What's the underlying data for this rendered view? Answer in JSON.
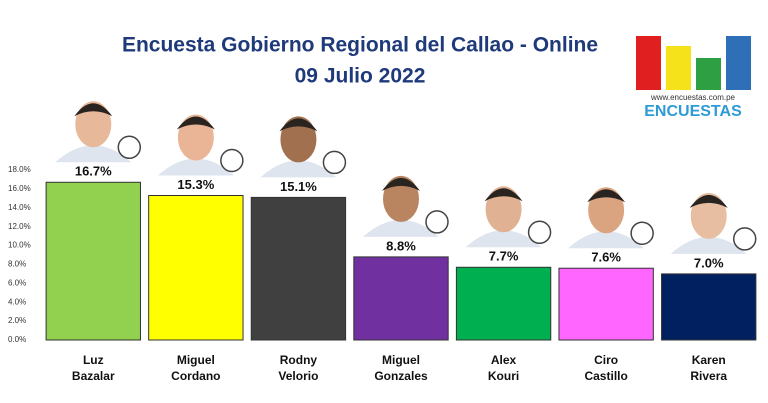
{
  "chart_data": {
    "type": "bar",
    "title": "Encuesta Gobierno Regional del Callao - Online",
    "subtitle": "09 Julio 2022",
    "brand": {
      "url": "www.encuestas.com.pe",
      "name": "ENCUESTAS"
    },
    "categories": [
      "Luz\nBazalar",
      "Miguel\nCordano",
      "Rodny\nVelorio",
      "Miguel\nGonzales",
      "Alex\nKouri",
      "Ciro\nCastillo",
      "Karen\nRivera"
    ],
    "values": [
      16.7,
      15.3,
      15.1,
      8.8,
      7.7,
      7.6,
      7.0
    ],
    "value_labels": [
      "16.7%",
      "15.3%",
      "15.1%",
      "8.8%",
      "7.7%",
      "7.6%",
      "7.0%"
    ],
    "colors": [
      "#92d050",
      "#ffff00",
      "#404040",
      "#7030a0",
      "#00b050",
      "#ff66ff",
      "#002060"
    ],
    "ylim": [
      0,
      18
    ],
    "yticks": [
      {
        "value": 0,
        "label": "0.0%"
      },
      {
        "value": 2,
        "label": "2.0%"
      },
      {
        "value": 4,
        "label": "4.0%"
      },
      {
        "value": 6,
        "label": "6.0%"
      },
      {
        "value": 8,
        "label": "8.0%"
      },
      {
        "value": 10,
        "label": "10.0%"
      },
      {
        "value": 12,
        "label": "12.0%"
      },
      {
        "value": 14,
        "label": "14.0%"
      },
      {
        "value": 16,
        "label": "16.0%"
      },
      {
        "value": 18,
        "label": "18.0%"
      }
    ],
    "grid": false
  }
}
